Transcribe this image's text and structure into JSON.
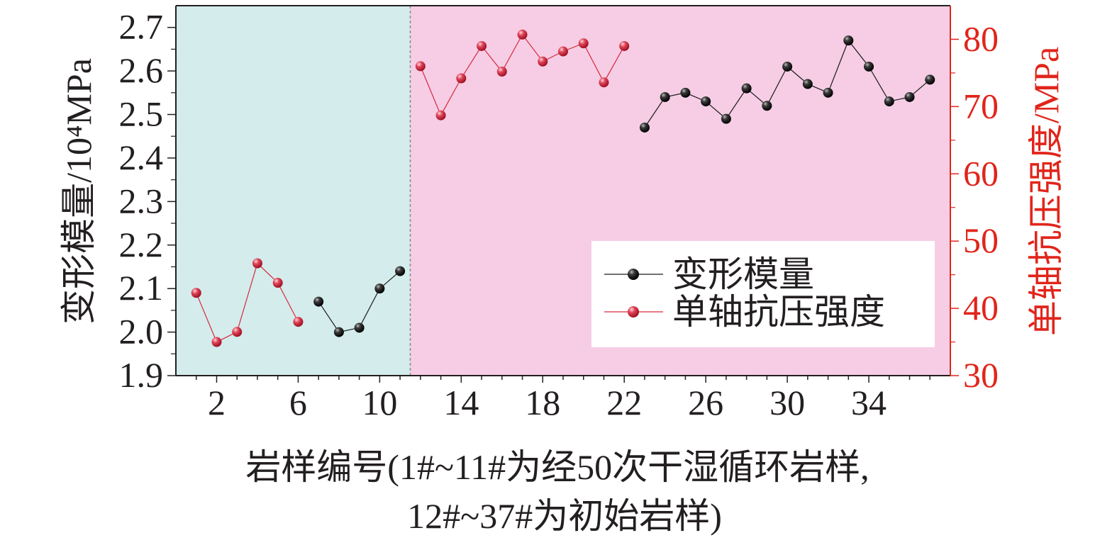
{
  "chart_data": {
    "type": "line",
    "xlabel_line1": "岩样编号(1#~11#为经50次干湿循环岩样,",
    "xlabel_line2": "12#~37#为初始岩样)",
    "ylabel_left": "变形模量/10⁴MPa",
    "ylabel_right": "单轴抗压强度/MPa",
    "x_ticks": [
      2,
      6,
      10,
      14,
      18,
      22,
      26,
      30,
      34
    ],
    "xlim": [
      0,
      38
    ],
    "ylim_left": [
      1.9,
      2.75
    ],
    "yticks_left": [
      "1.9",
      "2.0",
      "2.1",
      "2.2",
      "2.3",
      "2.4",
      "2.5",
      "2.6",
      "2.7"
    ],
    "ylim_right": [
      30,
      85
    ],
    "yticks_right": [
      "30",
      "40",
      "50",
      "60",
      "70",
      "80"
    ],
    "regions": [
      {
        "from": 0,
        "to": 11.5,
        "color": "#d4ecec"
      },
      {
        "from": 11.5,
        "to": 38,
        "color": "#f6cde5"
      }
    ],
    "divider_x": 11.5,
    "legend_position": "center-right",
    "series": [
      {
        "name": "变形模量",
        "axis": "left",
        "color": "#1a1a1a",
        "groups": [
          {
            "x": [
              7,
              8,
              9,
              10,
              11
            ],
            "y": [
              2.07,
              2.0,
              2.01,
              2.1,
              2.14
            ]
          },
          {
            "x": [
              23,
              24,
              25,
              26,
              27,
              28,
              29,
              30,
              31,
              32,
              33,
              34,
              35,
              36,
              37
            ],
            "y": [
              2.47,
              2.54,
              2.55,
              2.53,
              2.49,
              2.56,
              2.52,
              2.61,
              2.57,
              2.55,
              2.67,
              2.61,
              2.53,
              2.54,
              2.58
            ]
          }
        ]
      },
      {
        "name": "单轴抗压强度",
        "axis": "right",
        "color": "#d62a3c",
        "groups": [
          {
            "x": [
              1,
              2,
              3,
              4,
              5,
              6
            ],
            "y": [
              42.3,
              35.0,
              36.5,
              46.7,
              43.8,
              38.0
            ]
          },
          {
            "x": [
              12,
              13,
              14,
              15,
              16,
              17,
              18,
              19,
              20,
              21,
              22
            ],
            "y": [
              76.0,
              68.7,
              74.2,
              79.0,
              75.2,
              80.7,
              76.7,
              78.2,
              79.4,
              73.6,
              79.0
            ]
          }
        ]
      }
    ]
  }
}
